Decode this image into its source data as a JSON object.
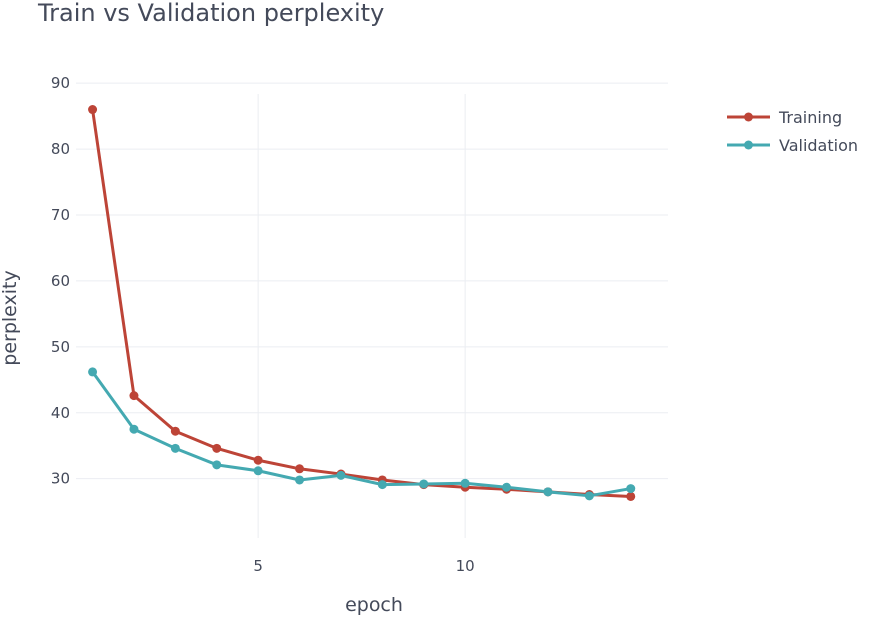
{
  "chart_data": {
    "type": "line",
    "title": "Train vs Validation perplexity",
    "xlabel": "epoch",
    "ylabel": "perplexity",
    "xlim": [
      0.6,
      14.9
    ],
    "ylim": [
      21,
      92
    ],
    "x_ticks": [
      5,
      10
    ],
    "y_ticks": [
      30,
      40,
      50,
      60,
      70,
      80,
      90
    ],
    "grid": true,
    "legend_position": "top-right",
    "x": [
      1,
      2,
      3,
      4,
      5,
      6,
      7,
      8,
      9,
      10,
      11,
      12,
      13,
      14
    ],
    "series": [
      {
        "name": "Training",
        "color": "#bd4437",
        "values": [
          86.0,
          42.6,
          37.2,
          34.6,
          32.8,
          31.5,
          30.7,
          29.8,
          29.1,
          28.7,
          28.4,
          28.0,
          27.6,
          27.3
        ]
      },
      {
        "name": "Validation",
        "color": "#44a9b1",
        "values": [
          46.2,
          37.5,
          34.6,
          32.1,
          31.2,
          29.8,
          30.5,
          29.1,
          29.2,
          29.3,
          28.7,
          28.0,
          27.4,
          28.5
        ]
      }
    ]
  }
}
